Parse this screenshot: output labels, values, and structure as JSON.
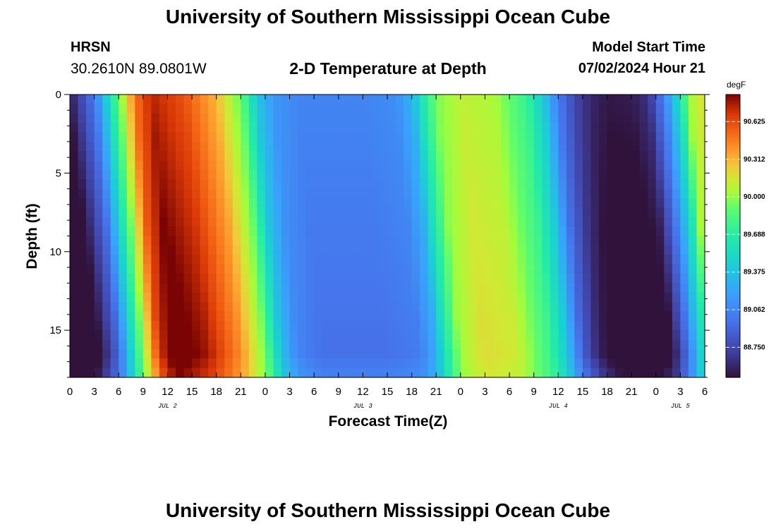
{
  "header": {
    "title": "University of Southern Mississippi Ocean Cube",
    "station": "HRSN",
    "coords": "30.2610N  89.0801W",
    "subtitle": "2-D Temperature at Depth",
    "model_start_label": "Model Start Time",
    "model_start_value": "07/02/2024 Hour 21"
  },
  "footer": {
    "title": "University of Southern Mississippi Ocean Cube"
  },
  "chart_data": {
    "type": "heatmap",
    "title": "2-D Temperature at Depth",
    "xlabel": "Forecast Time(Z)",
    "ylabel": "Depth (ft)",
    "xlim_hours": [
      0,
      78
    ],
    "ylim": [
      0,
      18
    ],
    "x_tick_labels": [
      "0",
      "3",
      "6",
      "9",
      "12",
      "15",
      "18",
      "21",
      "0",
      "3",
      "6",
      "9",
      "12",
      "15",
      "18",
      "21",
      "0",
      "3",
      "6",
      "9",
      "12",
      "15",
      "18",
      "21",
      "0",
      "3",
      "6"
    ],
    "y_ticks": [
      0,
      5,
      10,
      15
    ],
    "date_labels": [
      {
        "label": "JUL 2",
        "hour": 12
      },
      {
        "label": "JUL 3",
        "hour": 36
      },
      {
        "label": "JUL 4",
        "hour": 60
      },
      {
        "label": "JUL 5",
        "hour": 75
      }
    ],
    "colorbar": {
      "unit": "degF",
      "min": 88.5,
      "max": 90.85,
      "tick_labels": [
        "90.625",
        "90.312",
        "90.000",
        "89.688",
        "89.375",
        "89.062",
        "88.750"
      ],
      "tick_values": [
        90.625,
        90.312,
        90.0,
        89.688,
        89.375,
        89.062,
        88.75
      ]
    },
    "surface_trend_keyframes": {
      "hours": [
        0,
        3,
        6,
        8,
        10,
        14,
        18,
        21,
        23,
        25,
        28,
        33,
        36,
        40,
        42,
        43,
        45,
        48,
        52,
        56,
        58,
        60,
        62,
        64,
        66,
        69,
        71,
        73,
        75,
        76,
        78
      ],
      "degF": [
        88.55,
        89.0,
        89.9,
        90.5,
        90.75,
        90.6,
        90.3,
        89.9,
        89.4,
        89.15,
        89.05,
        89.05,
        89.05,
        89.1,
        89.3,
        89.55,
        89.95,
        90.1,
        90.05,
        89.75,
        89.45,
        89.0,
        88.75,
        88.6,
        88.53,
        88.55,
        88.65,
        89.05,
        89.6,
        90.0,
        90.2
      ]
    }
  }
}
